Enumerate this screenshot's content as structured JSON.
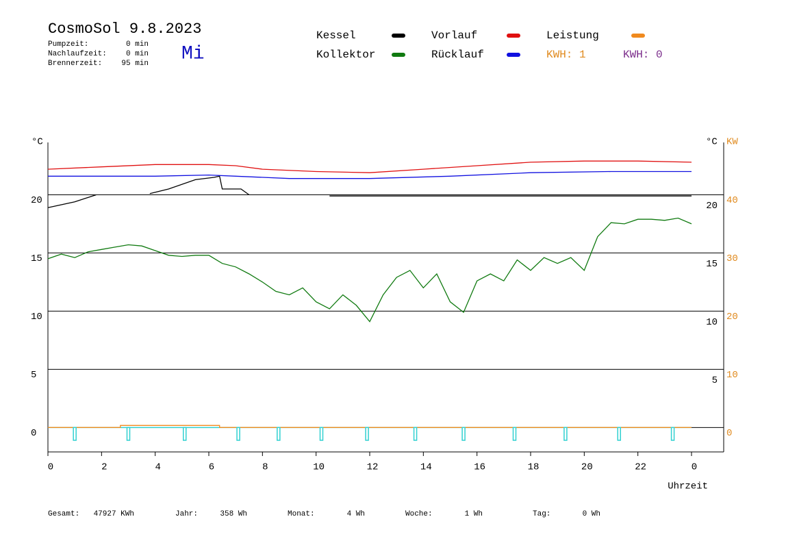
{
  "chart_data": {
    "type": "line",
    "header": {
      "title": "CosmoSol 9.8.2023",
      "weekday": "Mi",
      "stats": [
        {
          "label": "Pumpzeit:",
          "value": "0 min"
        },
        {
          "label": "Nachlaufzeit:",
          "value": "0 min"
        },
        {
          "label": "Brennerzeit:",
          "value": "95 min"
        }
      ]
    },
    "kwh_labels": [
      {
        "text": "KWH: 1",
        "color": "#e08a1e"
      },
      {
        "text": "KWH: 0",
        "color": "#7b2d8b"
      }
    ],
    "y_unit_left": "°C",
    "y_unit_right": "°C",
    "y2_unit": "KW",
    "x_label": "Uhrzeit",
    "xlim": [
      0,
      25.2
    ],
    "xticks": [
      0,
      2,
      4,
      6,
      8,
      10,
      12,
      14,
      16,
      18,
      20,
      22,
      {
        "value": 24,
        "label": "0"
      }
    ],
    "ylim": [
      -2.1,
      24.5
    ],
    "yticks": [
      0,
      5,
      10,
      15,
      20
    ],
    "yticks_right": [
      5,
      10,
      15,
      20
    ],
    "y2lim": [
      -4.2,
      49
    ],
    "y2ticks": [
      0,
      10,
      20,
      30,
      40
    ],
    "grid": true,
    "series": [
      {
        "name": "Kessel",
        "color": "#000000",
        "x": [
          0,
          1,
          1.8,
          1.9,
          3.8,
          4.5,
          5.5,
          6.2,
          6.4,
          6.5,
          7.2,
          7.5,
          8,
          10.5,
          24
        ],
        "values": [
          18.9,
          19.4,
          20.0,
          null,
          20.1,
          20.5,
          21.3,
          21.5,
          21.6,
          20.5,
          20.5,
          20.0,
          null,
          19.9,
          19.9
        ]
      },
      {
        "name": "Kollektor",
        "color": "#107a10",
        "x": [
          0,
          0.5,
          1,
          1.5,
          2,
          2.5,
          3,
          3.5,
          4,
          4.5,
          5,
          5.5,
          6,
          6.5,
          7,
          7.5,
          8,
          8.5,
          9,
          9.5,
          10,
          10.5,
          11,
          11.5,
          12,
          12.5,
          13,
          13.5,
          14,
          14.5,
          15,
          15.5,
          16,
          16.5,
          17,
          17.5,
          18,
          18.5,
          19,
          19.5,
          20,
          20.5,
          21,
          21.5,
          22,
          22.5,
          23,
          23.5,
          24
        ],
        "values": [
          14.5,
          14.9,
          14.6,
          15.1,
          15.3,
          15.5,
          15.7,
          15.6,
          15.2,
          14.8,
          14.7,
          14.8,
          14.8,
          14.1,
          13.8,
          13.2,
          12.5,
          11.7,
          11.4,
          12.0,
          10.8,
          10.2,
          11.4,
          10.5,
          9.1,
          11.4,
          12.9,
          13.5,
          12.0,
          13.2,
          10.8,
          9.9,
          12.6,
          13.2,
          12.6,
          14.4,
          13.5,
          14.6,
          14.1,
          14.6,
          13.5,
          16.4,
          17.6,
          17.5,
          17.9,
          17.9,
          17.8,
          18.0,
          17.5
        ]
      },
      {
        "name": "Vorlauf",
        "color": "#e01010",
        "x": [
          0,
          2,
          4,
          6,
          7,
          8,
          10,
          12,
          14,
          16,
          18,
          20,
          22,
          24
        ],
        "values": [
          22.2,
          22.4,
          22.6,
          22.6,
          22.5,
          22.2,
          22.0,
          21.9,
          22.2,
          22.5,
          22.8,
          22.9,
          22.9,
          22.8
        ]
      },
      {
        "name": "Rücklauf",
        "color": "#1010e0",
        "x": [
          0,
          4,
          6,
          7,
          9,
          12,
          15,
          18,
          21,
          24
        ],
        "values": [
          21.6,
          21.6,
          21.7,
          21.6,
          21.4,
          21.4,
          21.6,
          21.9,
          22.0,
          22.0
        ]
      },
      {
        "name": "Leistung",
        "color": "#f08a1e",
        "axis": "y2",
        "x": [
          0,
          2.7,
          2.7,
          6.4,
          6.4,
          24
        ],
        "values": [
          0,
          0,
          0.35,
          0.35,
          0,
          0
        ]
      },
      {
        "color": "#30d0d0",
        "type": "pulse",
        "x": [
          1.0,
          3.0,
          5.1,
          7.1,
          8.6,
          10.2,
          11.9,
          13.7,
          15.5,
          17.4,
          19.3,
          21.3,
          23.3
        ],
        "values": [
          -1.1,
          -1.1,
          -1.1,
          -1.1,
          -1.1,
          -1.1,
          -1.1,
          -1.1,
          -1.1,
          -1.1,
          -1.1,
          -1.1,
          -1.1
        ]
      }
    ],
    "footer": [
      {
        "label": "Gesamt:",
        "value": "47927 KWh"
      },
      {
        "label": "Jahr:",
        "value": "358 Wh"
      },
      {
        "label": "Monat:",
        "value": "4 Wh"
      },
      {
        "label": "Woche:",
        "value": "1 Wh"
      },
      {
        "label": "Tag:",
        "value": "0 Wh"
      }
    ]
  }
}
